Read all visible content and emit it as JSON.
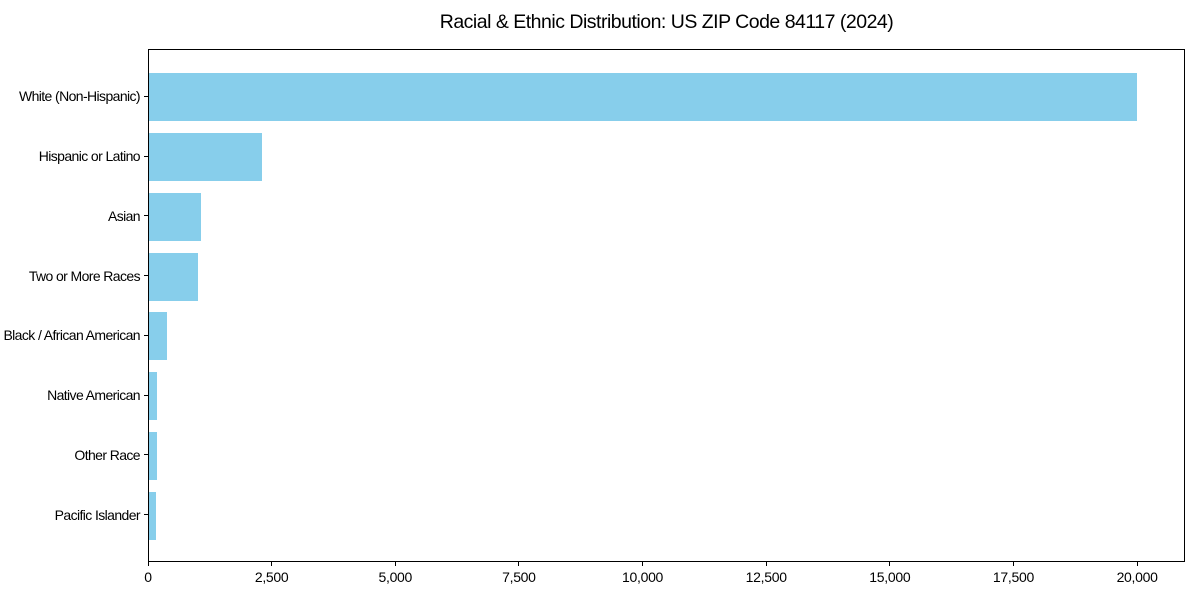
{
  "chart_data": {
    "type": "bar",
    "orientation": "horizontal",
    "title": "Racial & Ethnic Distribution: US ZIP Code 84117 (2024)",
    "categories": [
      "White (Non-Hispanic)",
      "Hispanic or Latino",
      "Asian",
      "Two or More Races",
      "Black / African American",
      "Native American",
      "Other Race",
      "Pacific Islander"
    ],
    "values": [
      19970,
      2285,
      1050,
      1000,
      355,
      165,
      160,
      150
    ],
    "xlabel": "",
    "ylabel": "",
    "xlim": [
      0,
      20969
    ],
    "x_ticks": [
      0,
      2500,
      5000,
      7500,
      10000,
      12500,
      15000,
      17500,
      20000
    ],
    "x_tick_labels": [
      "0",
      "2,500",
      "5,000",
      "7,500",
      "10,000",
      "12,500",
      "15,000",
      "17,500",
      "20,000"
    ],
    "bar_color": "#87CEEB",
    "axis_color": "#000000",
    "background_color": "#ffffff",
    "grid": false,
    "legend": null
  }
}
